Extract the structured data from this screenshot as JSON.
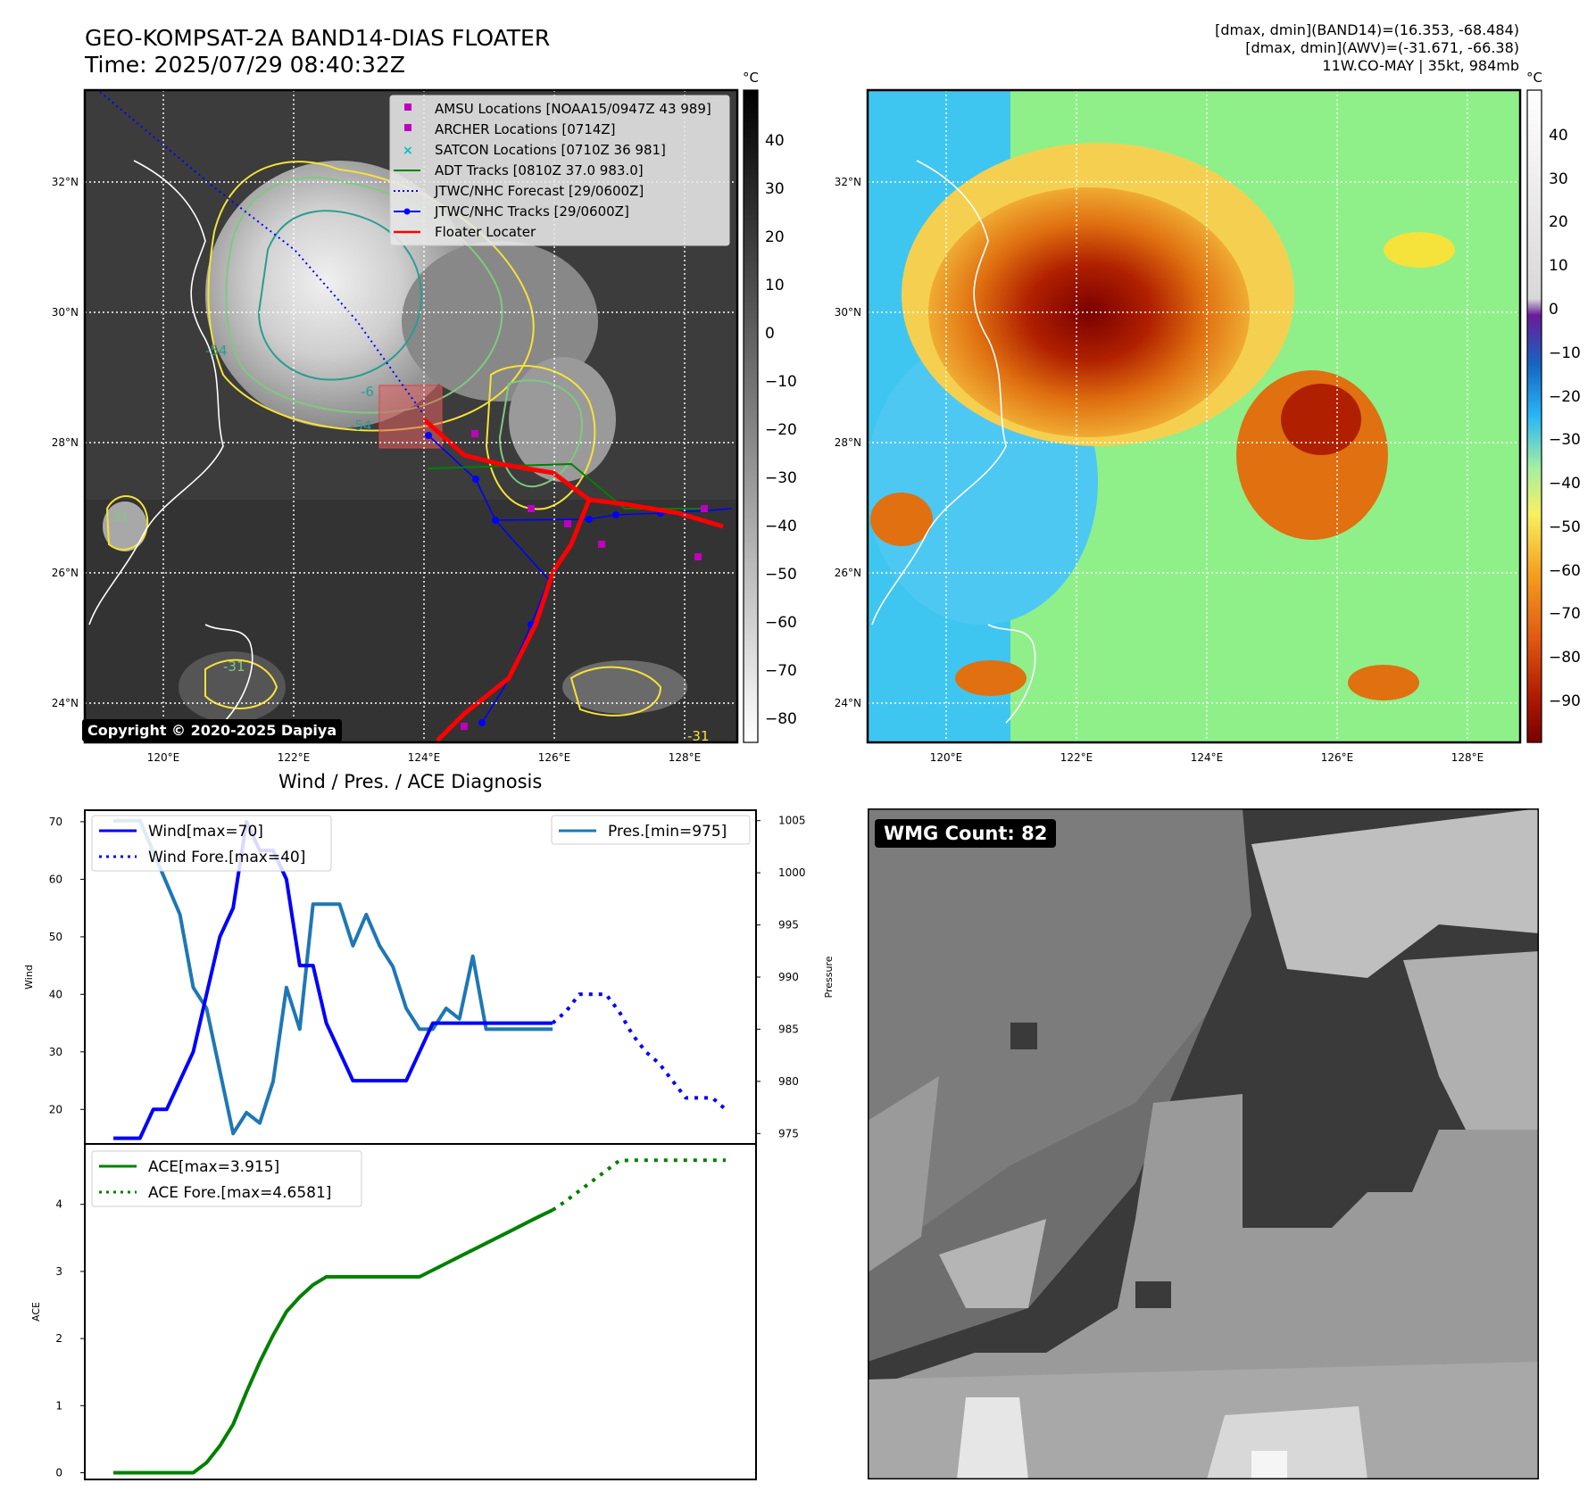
{
  "header": {
    "title_line1": "GEO-KOMPSAT-2A BAND14-DIAS FLOATER",
    "title_line2": "Time: 2025/07/29 08:40:32Z",
    "info_line1": "[dmax, dmin](BAND14)=(16.353, -68.484)",
    "info_line2": "[dmax, dmin](AWV)=(-31.671, -66.38)",
    "info_line3": "11W.CO-MAY | 35kt, 984mb"
  },
  "map_panels": {
    "lon_ticks": [
      "120°E",
      "122°E",
      "124°E",
      "126°E",
      "128°E"
    ],
    "lat_ticks": [
      "32°N",
      "30°N",
      "28°N",
      "26°N",
      "24°N"
    ],
    "colorbar_unit": "°C",
    "gray_colorbar_ticks": [
      "40",
      "30",
      "20",
      "10",
      "0",
      "−10",
      "−20",
      "−30",
      "−40",
      "−50",
      "−60",
      "−70",
      "−80"
    ],
    "color_colorbar_ticks": [
      "40",
      "30",
      "20",
      "10",
      "0",
      "−10",
      "−20",
      "−30",
      "−40",
      "−50",
      "−60",
      "−70",
      "−80",
      "−90"
    ],
    "contour_labels": [
      "-54",
      "-54",
      "-6",
      "-31",
      "-31",
      "-31"
    ],
    "copyright": "Copyright © 2020-2025 Dapiya",
    "legend": [
      {
        "label": "AMSU Locations [NOAA15/0947Z 43 989]",
        "marker": "square",
        "color": "#bf00bf"
      },
      {
        "label": "ARCHER Locations [0714Z]",
        "marker": "square",
        "color": "#bf00bf"
      },
      {
        "label": "SATCON Locations [0710Z 36 981]",
        "marker": "x",
        "color": "#00bfbf"
      },
      {
        "label": "ADT Tracks [0810Z 37.0 983.0]",
        "marker": "line",
        "color": "#008000"
      },
      {
        "label": "JTWC/NHC Forecast [29/0600Z]",
        "marker": "dotted",
        "color": "#0000ff"
      },
      {
        "label": "JTWC/NHC Tracks [29/0600Z]",
        "marker": "line-dot",
        "color": "#0000ff"
      },
      {
        "label": "Floater Locater",
        "marker": "line",
        "color": "#ff0000"
      }
    ]
  },
  "diagnosis": {
    "title": "Wind / Pres. / ACE Diagnosis",
    "wind_ylabel": "Wind",
    "pres_ylabel": "Pressure",
    "ace_ylabel": "ACE",
    "wind_ticks": [
      "70",
      "60",
      "50",
      "40",
      "30",
      "20"
    ],
    "pres_ticks": [
      "1005",
      "1000",
      "995",
      "990",
      "985",
      "980",
      "975"
    ],
    "ace_ticks": [
      "4",
      "3",
      "2",
      "1",
      "0"
    ],
    "legend_wind": "Wind[max=70]",
    "legend_wind_fore": "Wind Fore.[max=40]",
    "legend_pres": "Pres.[min=975]",
    "legend_ace": "ACE[max=3.915]",
    "legend_ace_fore": "ACE Fore.[max=4.6581]"
  },
  "wmg": {
    "badge": "WMG Count: 82"
  },
  "chart_data": [
    {
      "type": "line",
      "series": [
        {
          "name": "Wind[max=70]",
          "color": "#0000ff",
          "style": "solid",
          "x": [
            0,
            1,
            2,
            3,
            4,
            5,
            6,
            7,
            8,
            9,
            10,
            11,
            12,
            13,
            14,
            15,
            16,
            17,
            18,
            19,
            20,
            21,
            22,
            23,
            24,
            25,
            26,
            27,
            28,
            29,
            30,
            31,
            32,
            33
          ],
          "values": [
            15,
            15,
            15,
            20,
            20,
            25,
            30,
            40,
            50,
            55,
            70,
            65,
            65,
            60,
            45,
            45,
            35,
            30,
            25,
            25,
            25,
            25,
            25,
            30,
            35,
            35,
            35,
            35,
            35,
            35,
            35,
            35,
            35,
            35
          ]
        },
        {
          "name": "Wind Fore.[max=40]",
          "color": "#0000ff",
          "style": "dotted",
          "x": [
            33,
            34,
            35,
            36,
            37,
            38,
            39,
            40,
            41,
            42,
            43,
            44,
            45,
            46
          ],
          "values": [
            35,
            37,
            40,
            40,
            40,
            37,
            33,
            30,
            28,
            25,
            22,
            22,
            22,
            20
          ]
        },
        {
          "name": "Pres.[min=975]",
          "color": "#1f77b4",
          "style": "solid",
          "axis": "right",
          "x": [
            0,
            1,
            2,
            3,
            4,
            5,
            6,
            7,
            8,
            9,
            10,
            11,
            12,
            13,
            14,
            15,
            16,
            17,
            18,
            19,
            20,
            21,
            22,
            23,
            24,
            25,
            26,
            27,
            28,
            29,
            30,
            31,
            32,
            33
          ],
          "values": [
            1005,
            1005,
            1005,
            1002,
            999,
            996,
            989,
            987,
            981,
            975,
            977,
            976,
            980,
            989,
            985,
            997,
            997,
            997,
            993,
            996,
            993,
            991,
            987,
            985,
            985,
            987,
            986,
            992,
            985,
            985,
            985,
            985,
            985,
            985
          ]
        }
      ],
      "ylabel": "Wind",
      "ylim": [
        14,
        72
      ],
      "right_ylabel": "Pressure",
      "right_ylim": [
        974,
        1006
      ]
    },
    {
      "type": "line",
      "series": [
        {
          "name": "ACE[max=3.915]",
          "color": "#008000",
          "style": "solid",
          "x": [
            0,
            2,
            4,
            6,
            7,
            8,
            9,
            10,
            11,
            12,
            13,
            14,
            15,
            16,
            17,
            18,
            19,
            20,
            21,
            22,
            23,
            24,
            25,
            26,
            27,
            28,
            29,
            30,
            31,
            32,
            33
          ],
          "values": [
            0,
            0,
            0,
            0,
            0.15,
            0.4,
            0.72,
            1.2,
            1.65,
            2.05,
            2.4,
            2.62,
            2.8,
            2.92,
            2.92,
            2.92,
            2.92,
            2.92,
            2.92,
            2.92,
            2.92,
            3.02,
            3.12,
            3.22,
            3.32,
            3.42,
            3.52,
            3.62,
            3.72,
            3.82,
            3.915
          ]
        },
        {
          "name": "ACE Fore.[max=4.6581]",
          "color": "#008000",
          "style": "dotted",
          "x": [
            33,
            34,
            35,
            36,
            37,
            38,
            39,
            40,
            41,
            42,
            43,
            44,
            45,
            46
          ],
          "values": [
            3.915,
            4.05,
            4.2,
            4.35,
            4.5,
            4.65,
            4.6581,
            4.6581,
            4.6581,
            4.6581,
            4.6581,
            4.6581,
            4.6581,
            4.6581
          ]
        }
      ],
      "ylabel": "ACE",
      "ylim": [
        -0.1,
        4.9
      ]
    }
  ]
}
